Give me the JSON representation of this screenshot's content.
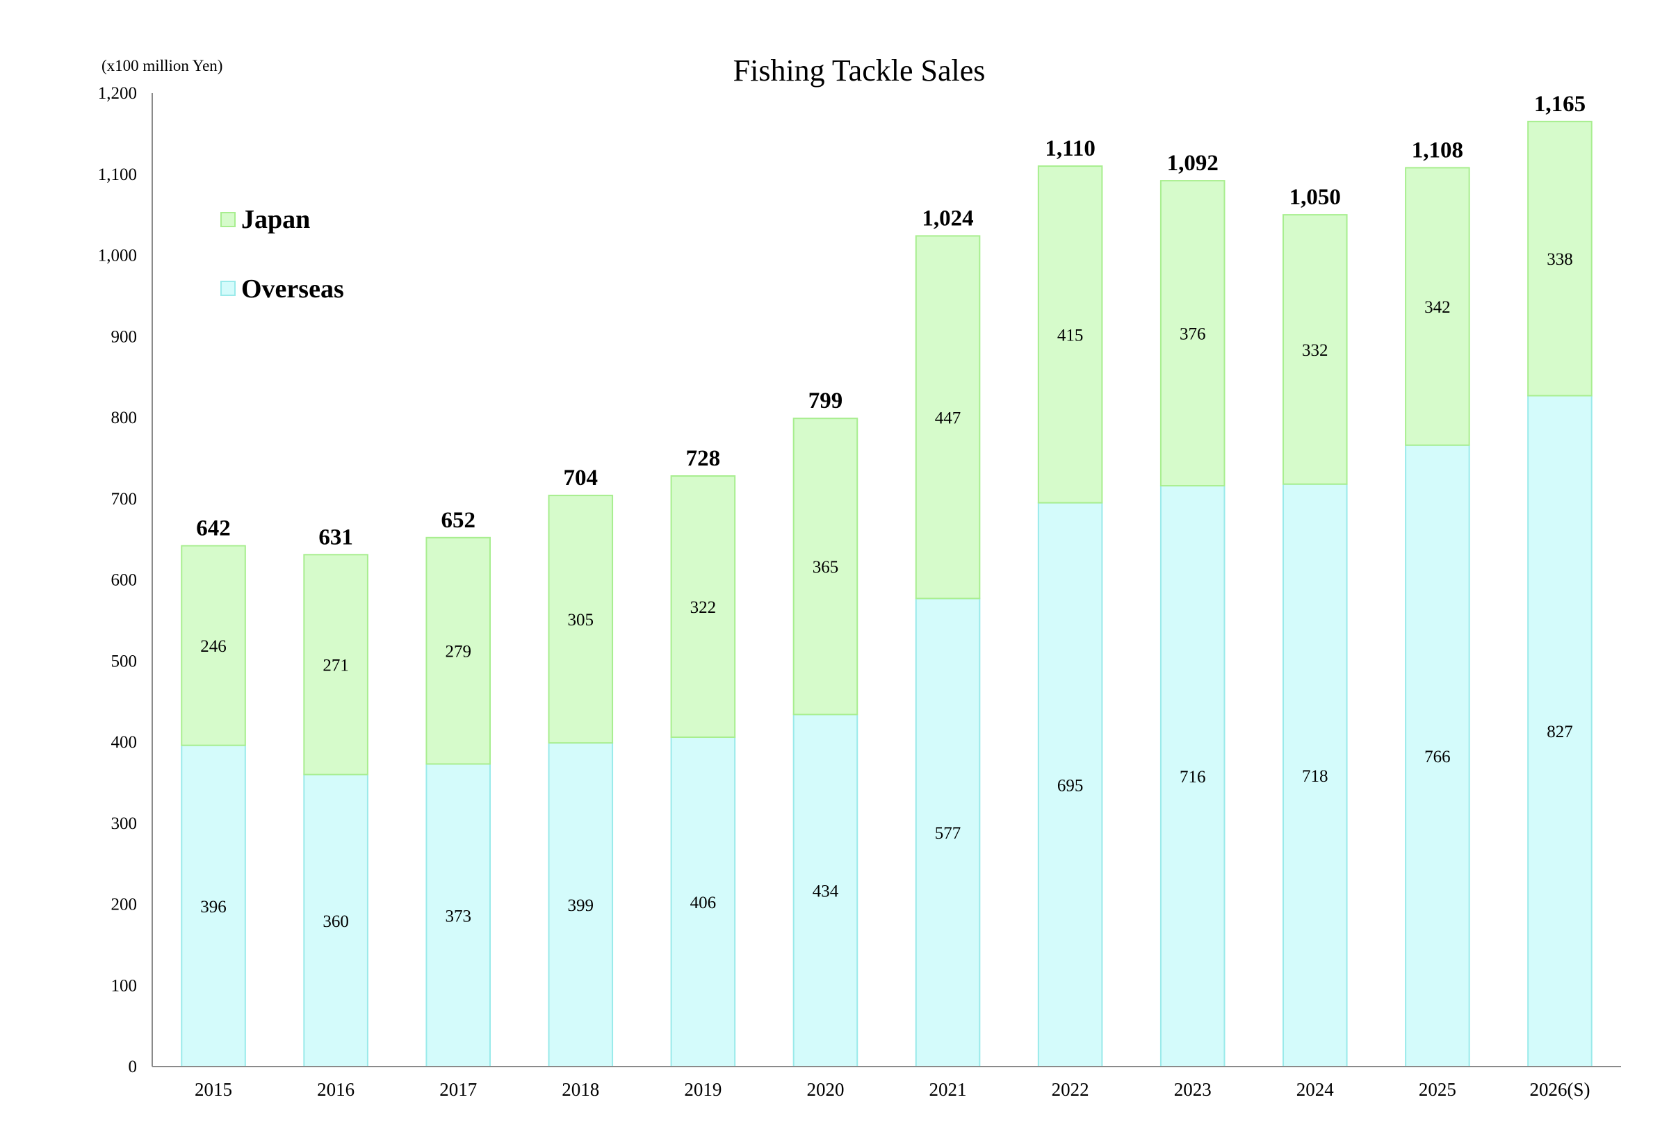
{
  "chart_data": {
    "type": "bar",
    "stacked": true,
    "title": "Fishing Tackle Sales",
    "unit_label": "(x100 million Yen)",
    "xlabel": "",
    "ylabel": "",
    "ylim": [
      0,
      1200
    ],
    "y_ticks": [
      0,
      100,
      200,
      300,
      400,
      500,
      600,
      700,
      800,
      900,
      1000,
      1100,
      1200
    ],
    "y_tick_labels": [
      "0",
      "100",
      "200",
      "300",
      "400",
      "500",
      "600",
      "700",
      "800",
      "900",
      "1,000",
      "1,100",
      "1,200"
    ],
    "categories": [
      "2015",
      "2016",
      "2017",
      "2018",
      "2019",
      "2020",
      "2021",
      "2022",
      "2023",
      "2024",
      "2025",
      "2026(S)"
    ],
    "series": [
      {
        "name": "Overseas",
        "values": [
          396,
          360,
          373,
          399,
          406,
          434,
          577,
          695,
          716,
          718,
          766,
          827
        ]
      },
      {
        "name": "Japan",
        "values": [
          246,
          271,
          279,
          305,
          322,
          365,
          447,
          415,
          376,
          332,
          342,
          338
        ]
      }
    ],
    "totals": [
      642,
      631,
      652,
      704,
      728,
      799,
      1024,
      1110,
      1092,
      1050,
      1108,
      1165
    ],
    "total_labels": [
      "642",
      "631",
      "652",
      "704",
      "728",
      "799",
      "1,024",
      "1,110",
      "1,092",
      "1,050",
      "1,108",
      "1,165"
    ],
    "legend": {
      "placement": "top-left",
      "entries": [
        "Japan",
        "Overseas"
      ]
    },
    "colors": {
      "Japan_fill": "#d6fbcb",
      "Japan_stroke": "#a8ee8f",
      "Overseas_fill": "#d4fbfb",
      "Overseas_stroke": "#9aeaea",
      "axis": "#8a8a8a",
      "text": "#000000"
    },
    "grid": false
  }
}
